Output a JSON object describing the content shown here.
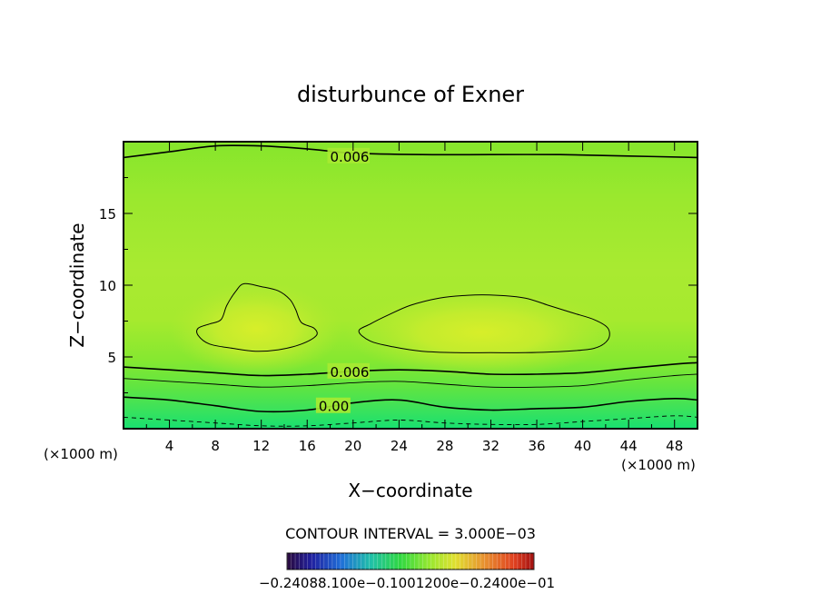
{
  "chart_data": {
    "type": "heatmap",
    "title": "disturbunce of Exner",
    "xlabel": "X−coordinate",
    "ylabel": "Z−coordinate",
    "x_unit_left": "(×1000 m)",
    "x_unit_right": "(×1000 m)",
    "xlim": [
      0,
      50
    ],
    "ylim": [
      0,
      20
    ],
    "x_ticks": [
      4,
      8,
      12,
      16,
      20,
      24,
      28,
      32,
      36,
      40,
      44,
      48
    ],
    "y_ticks": [
      5,
      10,
      15
    ],
    "contour_interval_text": "CONTOUR INTERVAL = 3.000E−03",
    "contour_labels": [
      {
        "text": "0.006",
        "x": 18,
        "z": 19.0
      },
      {
        "text": "0.006",
        "x": 18,
        "z": 4.0
      },
      {
        "text": "0.00",
        "x": 17,
        "z": 1.6
      }
    ],
    "contours": [
      {
        "level": 0.006,
        "points": [
          [
            0,
            18.9
          ],
          [
            4,
            19.3
          ],
          [
            8,
            19.7
          ],
          [
            12,
            19.7
          ],
          [
            16,
            19.5
          ],
          [
            20,
            19.2
          ],
          [
            26,
            19.1
          ],
          [
            32,
            19.1
          ],
          [
            38,
            19.1
          ],
          [
            44,
            19.0
          ],
          [
            50,
            18.9
          ]
        ]
      },
      {
        "level": 0.006,
        "points": [
          [
            0,
            4.3
          ],
          [
            4,
            4.1
          ],
          [
            8,
            3.9
          ],
          [
            12,
            3.7
          ],
          [
            16,
            3.8
          ],
          [
            20,
            4.0
          ],
          [
            24,
            4.1
          ],
          [
            28,
            4.0
          ],
          [
            32,
            3.8
          ],
          [
            36,
            3.8
          ],
          [
            40,
            3.9
          ],
          [
            44,
            4.2
          ],
          [
            48,
            4.5
          ],
          [
            50,
            4.6
          ]
        ]
      },
      {
        "level": 0.003,
        "points": [
          [
            0,
            3.5
          ],
          [
            4,
            3.3
          ],
          [
            8,
            3.1
          ],
          [
            12,
            2.9
          ],
          [
            16,
            3.0
          ],
          [
            20,
            3.2
          ],
          [
            24,
            3.3
          ],
          [
            28,
            3.1
          ],
          [
            32,
            2.9
          ],
          [
            36,
            2.9
          ],
          [
            40,
            3.0
          ],
          [
            44,
            3.4
          ],
          [
            48,
            3.7
          ],
          [
            50,
            3.8
          ]
        ]
      },
      {
        "level": 0.0,
        "points": [
          [
            0,
            2.2
          ],
          [
            4,
            2.0
          ],
          [
            8,
            1.6
          ],
          [
            12,
            1.2
          ],
          [
            16,
            1.3
          ],
          [
            20,
            1.8
          ],
          [
            24,
            2.0
          ],
          [
            28,
            1.5
          ],
          [
            32,
            1.3
          ],
          [
            36,
            1.4
          ],
          [
            40,
            1.5
          ],
          [
            44,
            1.9
          ],
          [
            48,
            2.1
          ],
          [
            50,
            2.0
          ]
        ]
      },
      {
        "level": -0.003,
        "dashed": true,
        "points": [
          [
            0,
            0.8
          ],
          [
            4,
            0.6
          ],
          [
            8,
            0.4
          ],
          [
            12,
            0.2
          ],
          [
            16,
            0.2
          ],
          [
            20,
            0.4
          ],
          [
            24,
            0.6
          ],
          [
            28,
            0.4
          ],
          [
            32,
            0.3
          ],
          [
            36,
            0.3
          ],
          [
            40,
            0.5
          ],
          [
            44,
            0.7
          ],
          [
            48,
            0.9
          ],
          [
            50,
            0.8
          ]
        ]
      }
    ],
    "closed_contours": [
      {
        "level": 0.009,
        "points": [
          [
            6.5,
            6.5
          ],
          [
            7.5,
            5.9
          ],
          [
            9.5,
            5.6
          ],
          [
            11.5,
            5.4
          ],
          [
            13.5,
            5.5
          ],
          [
            15.5,
            5.9
          ],
          [
            16.8,
            6.5
          ],
          [
            16.6,
            7.0
          ],
          [
            15.5,
            7.4
          ],
          [
            15.0,
            8.3
          ],
          [
            14.5,
            9.0
          ],
          [
            13.5,
            9.6
          ],
          [
            12.0,
            9.9
          ],
          [
            10.5,
            10.1
          ],
          [
            9.8,
            9.6
          ],
          [
            9.0,
            8.6
          ],
          [
            8.5,
            7.6
          ],
          [
            7.5,
            7.3
          ],
          [
            6.5,
            7.0
          ]
        ]
      },
      {
        "level": 0.009,
        "points": [
          [
            20.5,
            6.8
          ],
          [
            21.5,
            6.1
          ],
          [
            23.5,
            5.7
          ],
          [
            26.0,
            5.4
          ],
          [
            29.0,
            5.3
          ],
          [
            32.0,
            5.3
          ],
          [
            35.0,
            5.3
          ],
          [
            38.5,
            5.4
          ],
          [
            41.0,
            5.6
          ],
          [
            42.2,
            6.2
          ],
          [
            42.2,
            7.0
          ],
          [
            41.0,
            7.6
          ],
          [
            39.0,
            8.1
          ],
          [
            37.0,
            8.6
          ],
          [
            35.0,
            9.1
          ],
          [
            32.5,
            9.3
          ],
          [
            30.0,
            9.3
          ],
          [
            27.5,
            9.1
          ],
          [
            25.0,
            8.6
          ],
          [
            23.0,
            7.9
          ],
          [
            21.5,
            7.3
          ]
        ]
      }
    ],
    "colorbar_label": "−0.24088.100e−0.1001200e−0.2400e−01"
  }
}
